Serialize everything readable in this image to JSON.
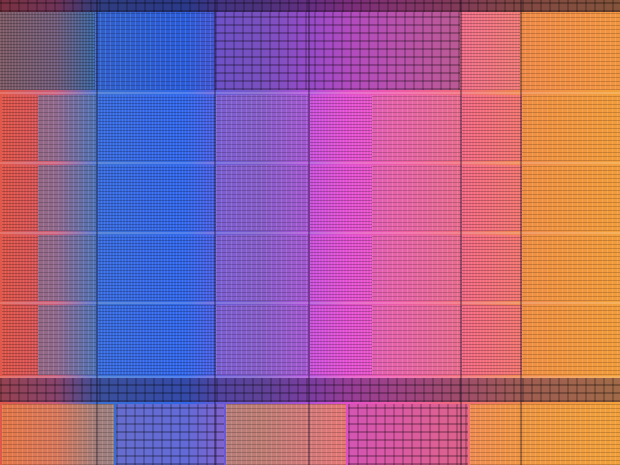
{
  "image": {
    "subject": "",
    "colors": {
      "red": "#e0584a",
      "blue": "#2f67e8",
      "violet": "#7a58c8",
      "magenta": "#e04fc8",
      "pink": "#ef5aa8",
      "orange": "#f3a23a"
    }
  }
}
